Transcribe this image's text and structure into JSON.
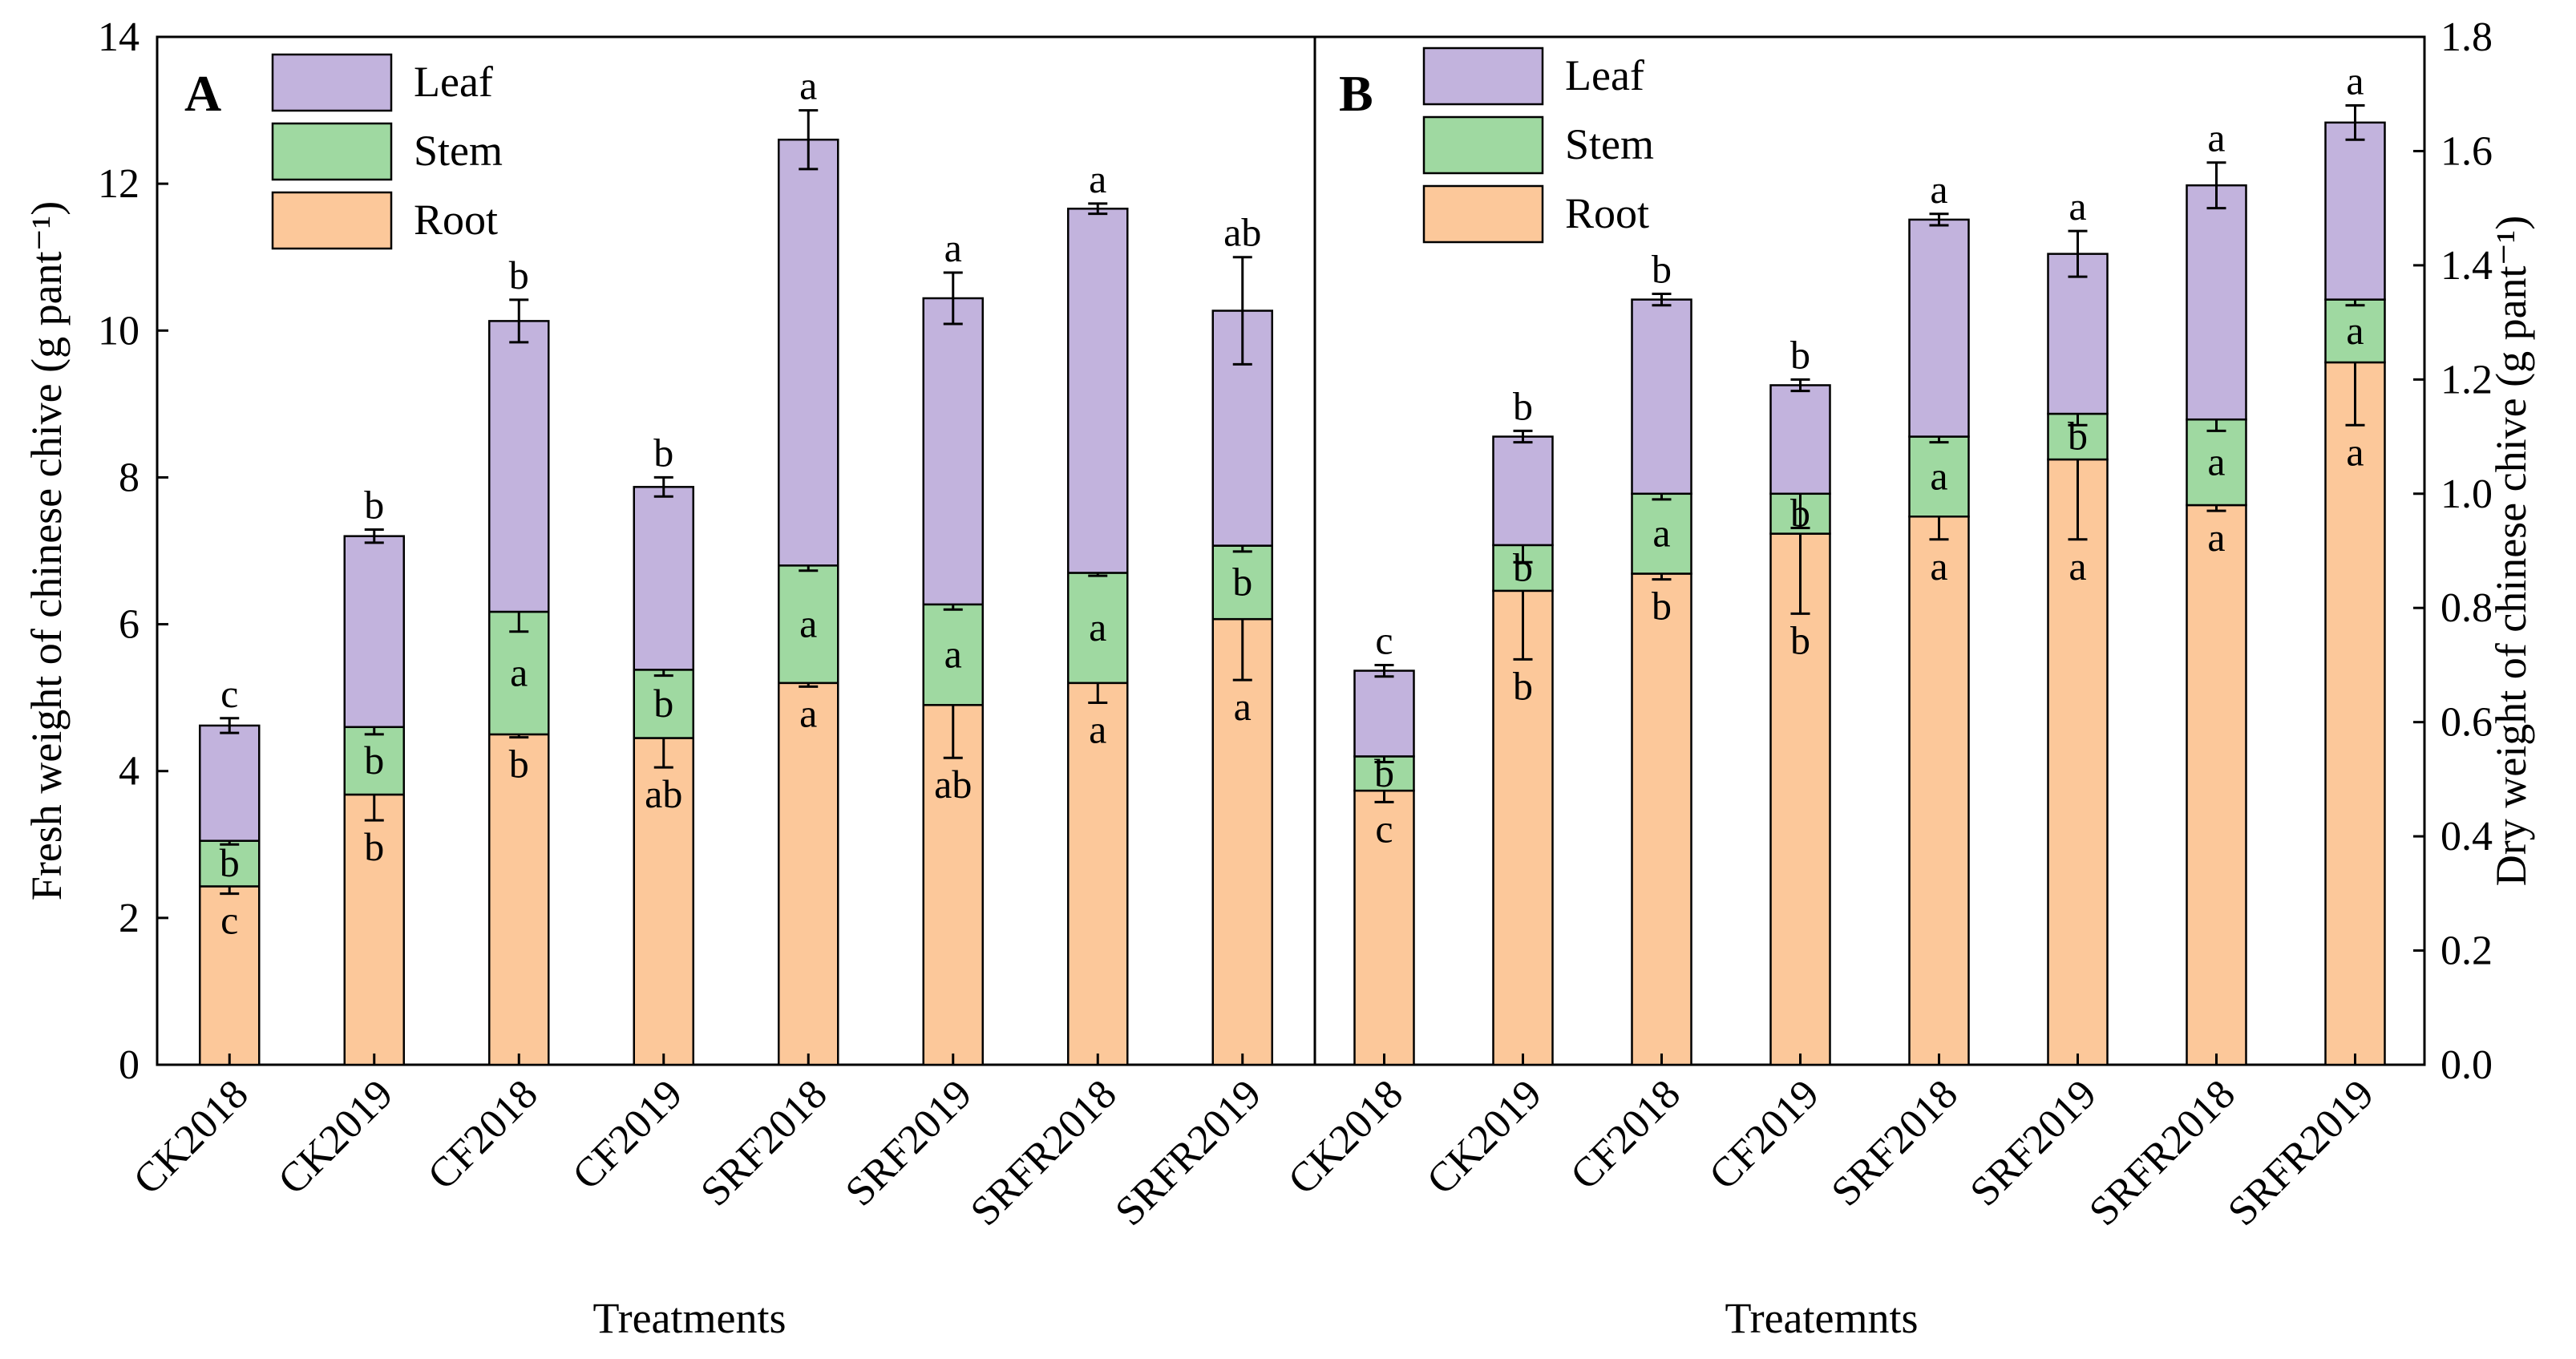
{
  "legend": [
    "Leaf",
    "Stem",
    "Root"
  ],
  "colors": {
    "Leaf": "#c2b3dd",
    "Stem": "#9fd9a1",
    "Root": "#fcc89a",
    "edge": "#000000"
  },
  "chart_data": [
    {
      "panel": "A",
      "type": "bar",
      "stacked": true,
      "xlabel": "Treatments",
      "ylabel": "Fresh weight of chinese chive (g pant⁻¹)",
      "ylim": [
        0,
        14
      ],
      "yticks": [
        "0",
        "2",
        "4",
        "6",
        "8",
        "10",
        "12",
        "14"
      ],
      "categories": [
        "CK2018",
        "CK2019",
        "CF2018",
        "CF2019",
        "SRF2018",
        "SRF2019",
        "SRFR2018",
        "SRFR2019"
      ],
      "series": [
        {
          "name": "Root",
          "values": [
            2.43,
            3.68,
            4.5,
            4.45,
            5.2,
            4.9,
            5.2,
            6.07
          ],
          "errors": [
            0.1,
            0.35,
            0.04,
            0.4,
            0.05,
            0.72,
            0.27,
            0.83
          ],
          "letters": [
            "c",
            "b",
            "b",
            "ab",
            "a",
            "ab",
            "a",
            "a"
          ]
        },
        {
          "name": "Stem",
          "values": [
            0.62,
            0.92,
            1.67,
            0.93,
            1.6,
            1.37,
            1.5,
            1.0
          ],
          "errors": [
            0.05,
            0.1,
            0.27,
            0.08,
            0.07,
            0.07,
            0.04,
            0.08
          ],
          "letters": [
            "b",
            "b",
            "a",
            "b",
            "a",
            "a",
            "a",
            "b"
          ]
        },
        {
          "name": "Leaf",
          "values": [
            1.57,
            2.6,
            3.96,
            2.49,
            5.8,
            4.17,
            4.96,
            3.2
          ],
          "errors": [
            0.1,
            0.09,
            0.29,
            0.13,
            0.4,
            0.35,
            0.07,
            0.73
          ],
          "letters": [
            "c",
            "b",
            "b",
            "b",
            "a",
            "a",
            "a",
            "ab"
          ]
        }
      ]
    },
    {
      "panel": "B",
      "type": "bar",
      "stacked": true,
      "xlabel": "Treatemnts",
      "ylabel": "Dry weight of chinese chive (g pant⁻¹)",
      "ylim": [
        0,
        1.8
      ],
      "yticks": [
        "0.0",
        "0.2",
        "0.4",
        "0.6",
        "0.8",
        "1.0",
        "1.2",
        "1.4",
        "1.6",
        "1.8"
      ],
      "categories": [
        "CK2018",
        "CK2019",
        "CF2018",
        "CF2019",
        "SRF2018",
        "SRF2019",
        "SRFR2018",
        "SRFR2019"
      ],
      "series": [
        {
          "name": "Root",
          "values": [
            0.48,
            0.83,
            0.86,
            0.93,
            0.96,
            1.06,
            0.98,
            1.23
          ],
          "errors": [
            0.02,
            0.12,
            0.01,
            0.14,
            0.04,
            0.14,
            0.01,
            0.11
          ],
          "letters": [
            "c",
            "b",
            "b",
            "b",
            "a",
            "a",
            "a",
            "a"
          ]
        },
        {
          "name": "Stem",
          "values": [
            0.06,
            0.08,
            0.14,
            0.07,
            0.14,
            0.08,
            0.15,
            0.11
          ],
          "errors": [
            0.01,
            0.03,
            0.01,
            0.06,
            0.01,
            0.02,
            0.02,
            0.01
          ],
          "letters": [
            "b",
            "b",
            "a",
            "b",
            "a",
            "b",
            "a",
            "a"
          ]
        },
        {
          "name": "Leaf",
          "values": [
            0.15,
            0.19,
            0.34,
            0.19,
            0.38,
            0.28,
            0.41,
            0.31
          ],
          "errors": [
            0.01,
            0.01,
            0.01,
            0.01,
            0.01,
            0.04,
            0.04,
            0.03
          ],
          "letters": [
            "c",
            "b",
            "b",
            "b",
            "a",
            "a",
            "a",
            "a"
          ]
        }
      ]
    }
  ]
}
